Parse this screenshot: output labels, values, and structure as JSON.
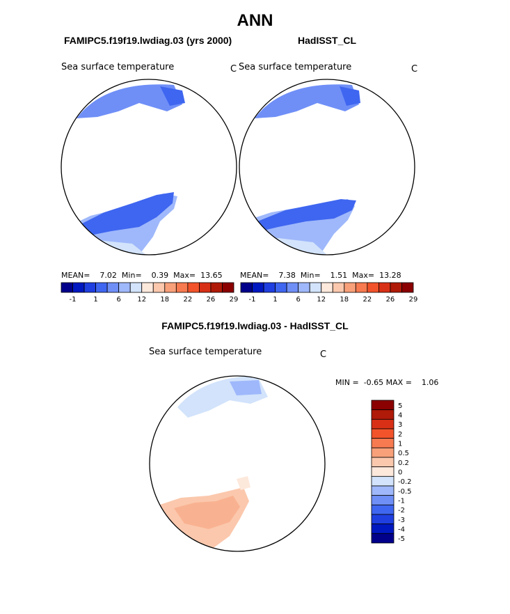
{
  "page": {
    "title": "ANN"
  },
  "chart_data": [
    {
      "type": "heatmap",
      "panel": "model",
      "title": "FAMIPC5.f19f19.lwdiag.03 (yrs 2000)",
      "variable": "Sea surface temperature",
      "units": "C",
      "stats": {
        "mean_label": "MEAN=",
        "mean": "7.02",
        "min_label": "Min=",
        "min": "0.39",
        "max_label": "Max=",
        "max": "13.65"
      },
      "colorbar": {
        "orientation": "horizontal",
        "ticks": [
          "-1",
          "1",
          "6",
          "12",
          "18",
          "22",
          "26",
          "29"
        ],
        "colors": [
          "#00008b",
          "#0018c0",
          "#1f3fe0",
          "#3f66f0",
          "#6f8ff7",
          "#9fb8fb",
          "#d2e3fb",
          "#fde8dc",
          "#fbc8ad",
          "#f8a07a",
          "#f77a50",
          "#f2532a",
          "#d83016",
          "#b01a08",
          "#8b0000"
        ]
      }
    },
    {
      "type": "heatmap",
      "panel": "obs",
      "title": "HadISST_CL",
      "variable": "Sea surface temperature",
      "units": "C",
      "stats": {
        "mean_label": "MEAN=",
        "mean": "7.38",
        "min_label": "Min=",
        "min": "1.51",
        "max_label": "Max=",
        "max": "13.28"
      },
      "colorbar": {
        "orientation": "horizontal",
        "ticks": [
          "-1",
          "1",
          "6",
          "12",
          "18",
          "22",
          "26",
          "29"
        ],
        "colors": [
          "#00008b",
          "#0018c0",
          "#1f3fe0",
          "#3f66f0",
          "#6f8ff7",
          "#9fb8fb",
          "#d2e3fb",
          "#fde8dc",
          "#fbc8ad",
          "#f8a07a",
          "#f77a50",
          "#f2532a",
          "#d83016",
          "#b01a08",
          "#8b0000"
        ]
      }
    },
    {
      "type": "heatmap",
      "panel": "difference",
      "title": "FAMIPC5.f19f19.lwdiag.03 - HadISST_CL",
      "variable": "Sea surface temperature",
      "units": "C",
      "stats": {
        "min_label": "MIN =",
        "min": "-0.65",
        "max_label": "MAX =",
        "max": "1.06"
      },
      "colorbar": {
        "orientation": "vertical",
        "ticks": [
          "5",
          "4",
          "3",
          "2",
          "1",
          "0.5",
          "0.2",
          "0",
          "-0.2",
          "-0.5",
          "-1",
          "-2",
          "-3",
          "-4",
          "-5"
        ],
        "colors": [
          "#8b0000",
          "#b01a08",
          "#d83016",
          "#f2532a",
          "#f77a50",
          "#f8a07a",
          "#fbc8ad",
          "#fde8dc",
          "#d2e3fb",
          "#9fb8fb",
          "#6f8ff7",
          "#3f66f0",
          "#1f3fe0",
          "#0018c0",
          "#00008b"
        ]
      }
    }
  ]
}
